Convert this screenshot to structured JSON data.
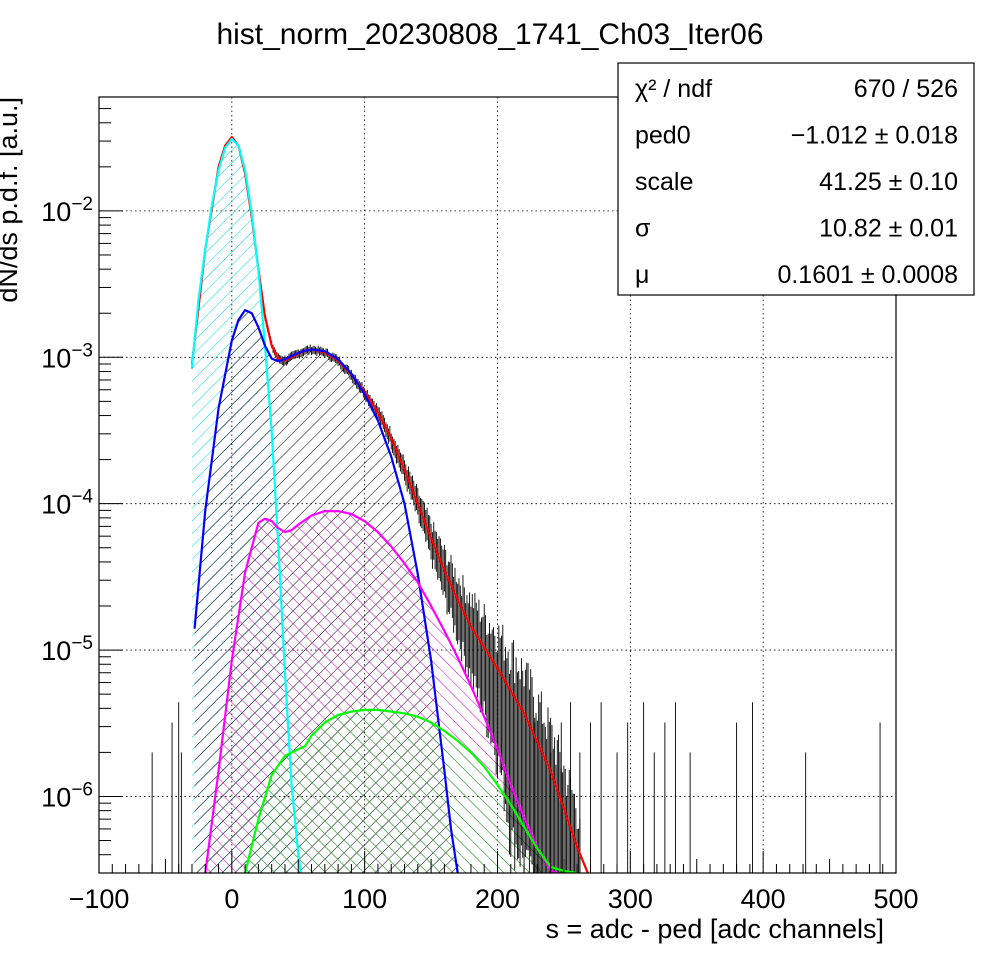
{
  "chart_data": {
    "type": "line",
    "title": "hist_norm_20230808_1741_Ch03_Iter06",
    "xlabel": "s = adc - ped [adc channels]",
    "ylabel": "dN/ds p.d.f. [a.u.]",
    "xlim": [
      -100,
      500
    ],
    "ylim": [
      3e-07,
      0.06
    ],
    "yscale": "log",
    "grid": true,
    "x_ticks": [
      -100,
      0,
      100,
      200,
      300,
      400,
      500
    ],
    "x_tick_labels": [
      "−100",
      "0",
      "100",
      "200",
      "300",
      "400",
      "500"
    ],
    "y_ticks": [
      1e-06,
      1e-05,
      0.0001,
      0.001,
      0.01
    ],
    "y_tick_labels": [
      {
        "base": "10",
        "exp": "−6"
      },
      {
        "base": "10",
        "exp": "−5"
      },
      {
        "base": "10",
        "exp": "−4"
      },
      {
        "base": "10",
        "exp": "−3"
      },
      {
        "base": "10",
        "exp": "−2"
      }
    ],
    "stats_box": {
      "rows": [
        {
          "label": "χ² / ndf",
          "value": "670 / 526"
        },
        {
          "label": "ped0",
          "value": "−1.012 ± 0.018"
        },
        {
          "label": "scale",
          "value": "41.25 ± 0.10"
        },
        {
          "label": "σ",
          "value": "10.82 ± 0.01"
        },
        {
          "label": "μ",
          "value": "0.1601 ± 0.0008"
        }
      ]
    },
    "series": [
      {
        "color": "#ff0000",
        "x": [
          -30,
          -20,
          -10,
          -5,
          0,
          5,
          10,
          15,
          20,
          25,
          30,
          35,
          40,
          45,
          50,
          55,
          60,
          70,
          80,
          90,
          100,
          110,
          120,
          130,
          140,
          150,
          160,
          170,
          180,
          200,
          220,
          240,
          260,
          268
        ],
        "y": [
          0.0009,
          0.0055,
          0.02,
          0.028,
          0.032,
          0.028,
          0.018,
          0.009,
          0.004,
          0.0019,
          0.0012,
          0.00098,
          0.00095,
          0.001,
          0.00106,
          0.00111,
          0.00113,
          0.00108,
          0.00095,
          0.00076,
          0.00058,
          0.00042,
          0.00028,
          0.00017,
          0.0001,
          5.8e-05,
          3.5e-05,
          2.2e-05,
          1.45e-05,
          7.5e-06,
          3.7e-06,
          1.5e-06,
          4.5e-07,
          3e-07
        ]
      },
      {
        "color": "#00ffff",
        "fill": true,
        "x": [
          -30,
          -25,
          -20,
          -15,
          -10,
          -5,
          0,
          5,
          10,
          15,
          20,
          25,
          30,
          35,
          40,
          45,
          50,
          52
        ],
        "y": [
          0.00085,
          0.0025,
          0.0055,
          0.011,
          0.019,
          0.027,
          0.031,
          0.028,
          0.019,
          0.0095,
          0.0039,
          0.0012,
          0.00031,
          5.2e-05,
          6.8e-06,
          1.2e-06,
          4e-07,
          3e-07
        ]
      },
      {
        "color": "#0000ff",
        "fill": true,
        "x": [
          -28,
          -20,
          -10,
          0,
          5,
          10,
          15,
          20,
          25,
          30,
          35,
          40,
          45,
          50,
          55,
          60,
          70,
          80,
          90,
          100,
          110,
          120,
          130,
          140,
          150,
          160,
          165,
          170
        ],
        "y": [
          1.4e-05,
          9e-05,
          0.00045,
          0.0013,
          0.0018,
          0.0021,
          0.002,
          0.0016,
          0.0012,
          0.00098,
          0.00094,
          0.00097,
          0.00102,
          0.00107,
          0.00111,
          0.00113,
          0.0011,
          0.00097,
          0.00077,
          0.00056,
          0.00037,
          0.00021,
          0.0001,
          3.3e-05,
          8.5e-06,
          1.5e-06,
          6e-07,
          3e-07
        ]
      },
      {
        "color": "#ff00ff",
        "fill": true,
        "x": [
          -20,
          -10,
          0,
          10,
          20,
          25,
          30,
          35,
          40,
          45,
          50,
          60,
          70,
          80,
          90,
          100,
          110,
          120,
          130,
          140,
          150,
          160,
          170,
          180,
          190,
          200,
          210,
          220,
          230,
          240,
          245
        ],
        "y": [
          3e-07,
          1.5e-06,
          8.5e-06,
          3.4e-05,
          7.4e-05,
          7.9e-05,
          7.6e-05,
          6.8e-05,
          6.4e-05,
          6.6e-05,
          7.2e-05,
          8.3e-05,
          8.9e-05,
          8.9e-05,
          8.5e-05,
          7.6e-05,
          6.4e-05,
          5.1e-05,
          3.9e-05,
          2.9e-05,
          2e-05,
          1.35e-05,
          8.9e-06,
          5.7e-06,
          3.5e-06,
          2.1e-06,
          1.2e-06,
          7.2e-07,
          4.5e-07,
          3.1e-07,
          3e-07
        ]
      },
      {
        "color": "#00ff00",
        "fill": true,
        "x": [
          10,
          20,
          30,
          40,
          50,
          55,
          60,
          70,
          80,
          90,
          100,
          110,
          120,
          130,
          140,
          150,
          160,
          170,
          180,
          190,
          200,
          210,
          220,
          230,
          240,
          250,
          260
        ],
        "y": [
          3e-07,
          7e-07,
          1.4e-06,
          1.9e-06,
          2.1e-06,
          2.2e-06,
          2.6e-06,
          3.2e-06,
          3.6e-06,
          3.8e-06,
          3.9e-06,
          3.9e-06,
          3.8e-06,
          3.7e-06,
          3.5e-06,
          3.2e-06,
          2.8e-06,
          2.4e-06,
          2e-06,
          1.6e-06,
          1.2e-06,
          8.8e-07,
          6.2e-07,
          4.4e-07,
          3.3e-07,
          3.1e-07,
          3e-07
        ]
      }
    ]
  }
}
